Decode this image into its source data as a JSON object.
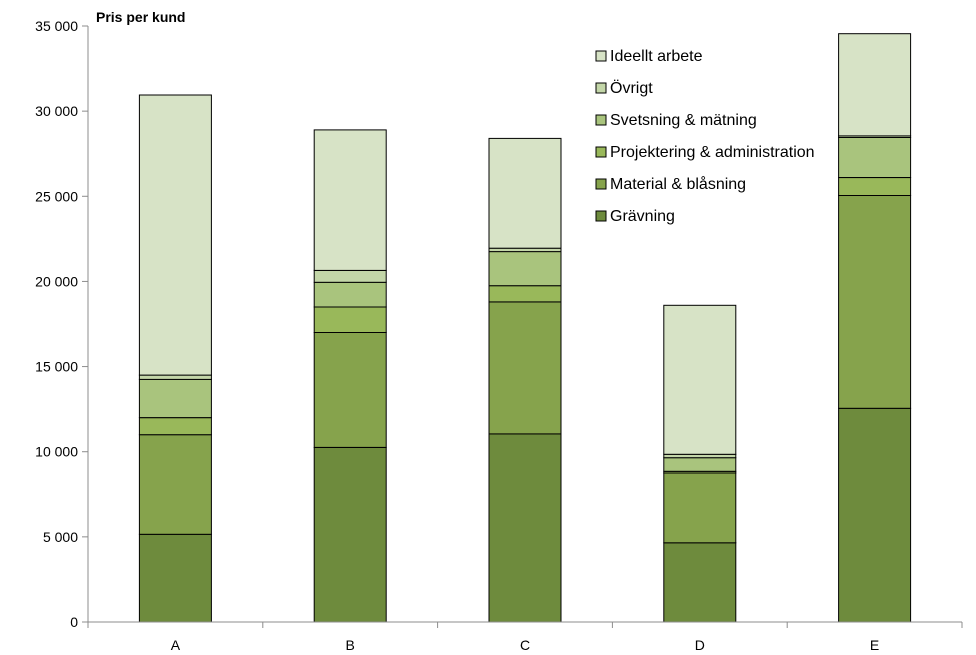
{
  "chart_data": {
    "type": "bar",
    "stacked": true,
    "ylabel": "Pris per kund",
    "ylim": [
      0,
      35000
    ],
    "yticks": [
      "0",
      "5 000",
      "10 000",
      "15 000",
      "20 000",
      "25 000",
      "30 000",
      "35 000"
    ],
    "ytick_values": [
      0,
      5000,
      10000,
      15000,
      20000,
      25000,
      30000,
      35000
    ],
    "categories": [
      "A",
      "B",
      "C",
      "D",
      "E"
    ],
    "grid": false,
    "legend_position": "top-right",
    "series": [
      {
        "name": "Grävning",
        "color": "#6e8b3d",
        "values": [
          5150,
          10250,
          11050,
          4650,
          12550
        ]
      },
      {
        "name": "Material & blåsning",
        "color": "#86a34c",
        "values": [
          5850,
          6750,
          7750,
          4100,
          12500
        ]
      },
      {
        "name": "Projektering & administration",
        "color": "#99b85a",
        "values": [
          1000,
          1500,
          950,
          100,
          1050
        ]
      },
      {
        "name": "Svetsning & mätning",
        "color": "#a9c47d",
        "values": [
          2250,
          1450,
          2000,
          800,
          2350
        ]
      },
      {
        "name": "Övrigt",
        "color": "#c3d6a8",
        "values": [
          250,
          700,
          200,
          200,
          100
        ]
      },
      {
        "name": "Ideellt arbete",
        "color": "#d7e3c6",
        "values": [
          16450,
          8250,
          6450,
          8750,
          6000
        ]
      }
    ]
  }
}
